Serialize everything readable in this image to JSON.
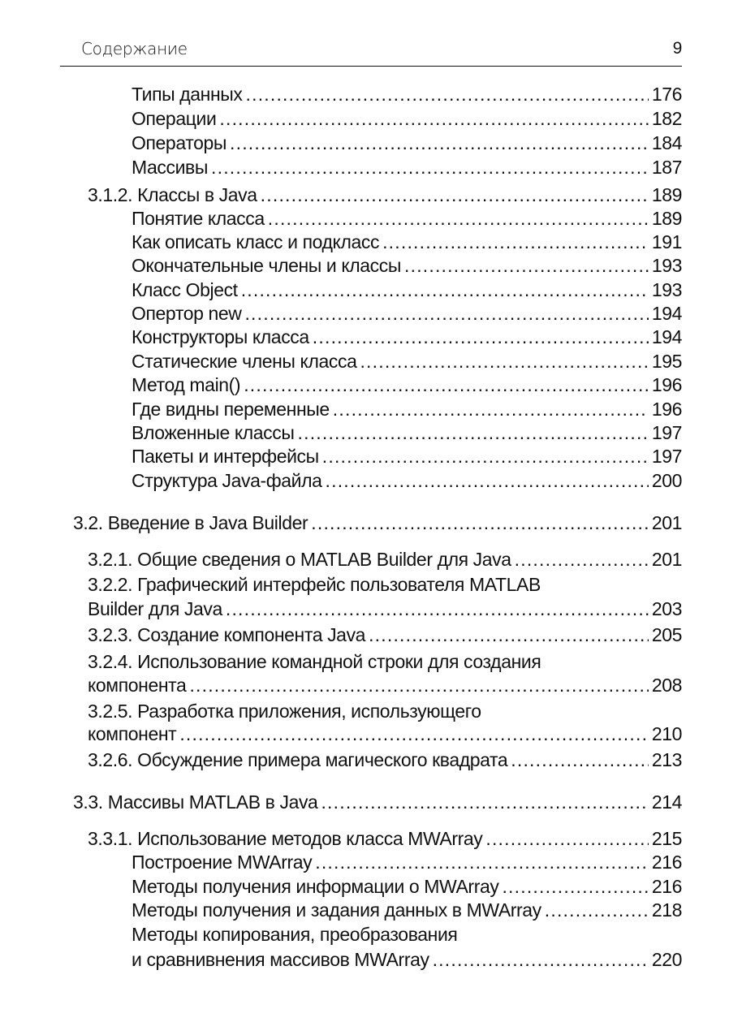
{
  "header": {
    "title": "Содержание",
    "page_number": "9"
  },
  "toc": [
    {
      "level": 2,
      "lines": [
        "Типы данных"
      ],
      "page": "176"
    },
    {
      "level": 2,
      "lines": [
        "Операции"
      ],
      "page": "182"
    },
    {
      "level": 2,
      "lines": [
        "Операторы"
      ],
      "page": "184"
    },
    {
      "level": 2,
      "lines": [
        "Массивы"
      ],
      "page": "187"
    },
    {
      "level": 1,
      "lines": [
        "3.1.2. Классы в Java"
      ],
      "page": "189"
    },
    {
      "level": 2,
      "lines": [
        "Понятие класса"
      ],
      "page": "189"
    },
    {
      "level": 2,
      "lines": [
        "Как описать класс и подкласс"
      ],
      "page": "191"
    },
    {
      "level": 2,
      "lines": [
        "Окончательные члены и классы"
      ],
      "page": "193"
    },
    {
      "level": 2,
      "lines": [
        "Класс Object"
      ],
      "page": "193"
    },
    {
      "level": 2,
      "lines": [
        "Опертор new"
      ],
      "page": "194"
    },
    {
      "level": 2,
      "lines": [
        "Конструкторы класса"
      ],
      "page": "194"
    },
    {
      "level": 2,
      "lines": [
        "Статические члены класса"
      ],
      "page": "195"
    },
    {
      "level": 2,
      "lines": [
        "Метод main()"
      ],
      "page": "196"
    },
    {
      "level": 2,
      "lines": [
        "Где видны переменные"
      ],
      "page": "196"
    },
    {
      "level": 2,
      "lines": [
        "Вложенные классы"
      ],
      "page": "197"
    },
    {
      "level": 2,
      "lines": [
        "Пакеты и интерфейсы"
      ],
      "page": "197"
    },
    {
      "level": 2,
      "lines": [
        "Структура Java-файла"
      ],
      "page": "200"
    },
    {
      "level": 0,
      "lines": [
        "3.2. Введение в Java Builder"
      ],
      "page": "201"
    },
    {
      "level": 1,
      "lines": [
        "3.2.1. Общие сведения о MATLAB Builder для Java"
      ],
      "page": "201"
    },
    {
      "level": 1,
      "lines": [
        "3.2.2. Графический интерфейс пользователя MATLAB",
        "Builder для  Java"
      ],
      "page": "203"
    },
    {
      "level": 1,
      "lines": [
        "3.2.3.  Создание компонента Java"
      ],
      "page": "205"
    },
    {
      "level": 1,
      "lines": [
        "3.2.4. Использование командной строки для создания",
        "компонента"
      ],
      "page": "208"
    },
    {
      "level": 1,
      "lines": [
        "3.2.5. Разработка приложения, использующего",
        "компонент"
      ],
      "page": "210"
    },
    {
      "level": 1,
      "lines": [
        "3.2.6. Обсуждение примера магического квадрата"
      ],
      "page": "213"
    },
    {
      "level": 0,
      "lines": [
        "3.3. Массивы MATLAB в Java"
      ],
      "page": "214"
    },
    {
      "level": 1,
      "lines": [
        "3.3.1. Использование методов класса MWArray"
      ],
      "page": "215"
    },
    {
      "level": 2,
      "lines": [
        "Построение MWArray"
      ],
      "page": "216"
    },
    {
      "level": 2,
      "lines": [
        "Методы получения информации о MWArray"
      ],
      "page": "216"
    },
    {
      "level": 2,
      "lines": [
        "Методы получения и задания данных в MWArray"
      ],
      "page": "218"
    },
    {
      "level": 2,
      "lines": [
        "Методы копирования, преобразования",
        "и сравнивнения массивов MWArray"
      ],
      "page": "220"
    }
  ]
}
